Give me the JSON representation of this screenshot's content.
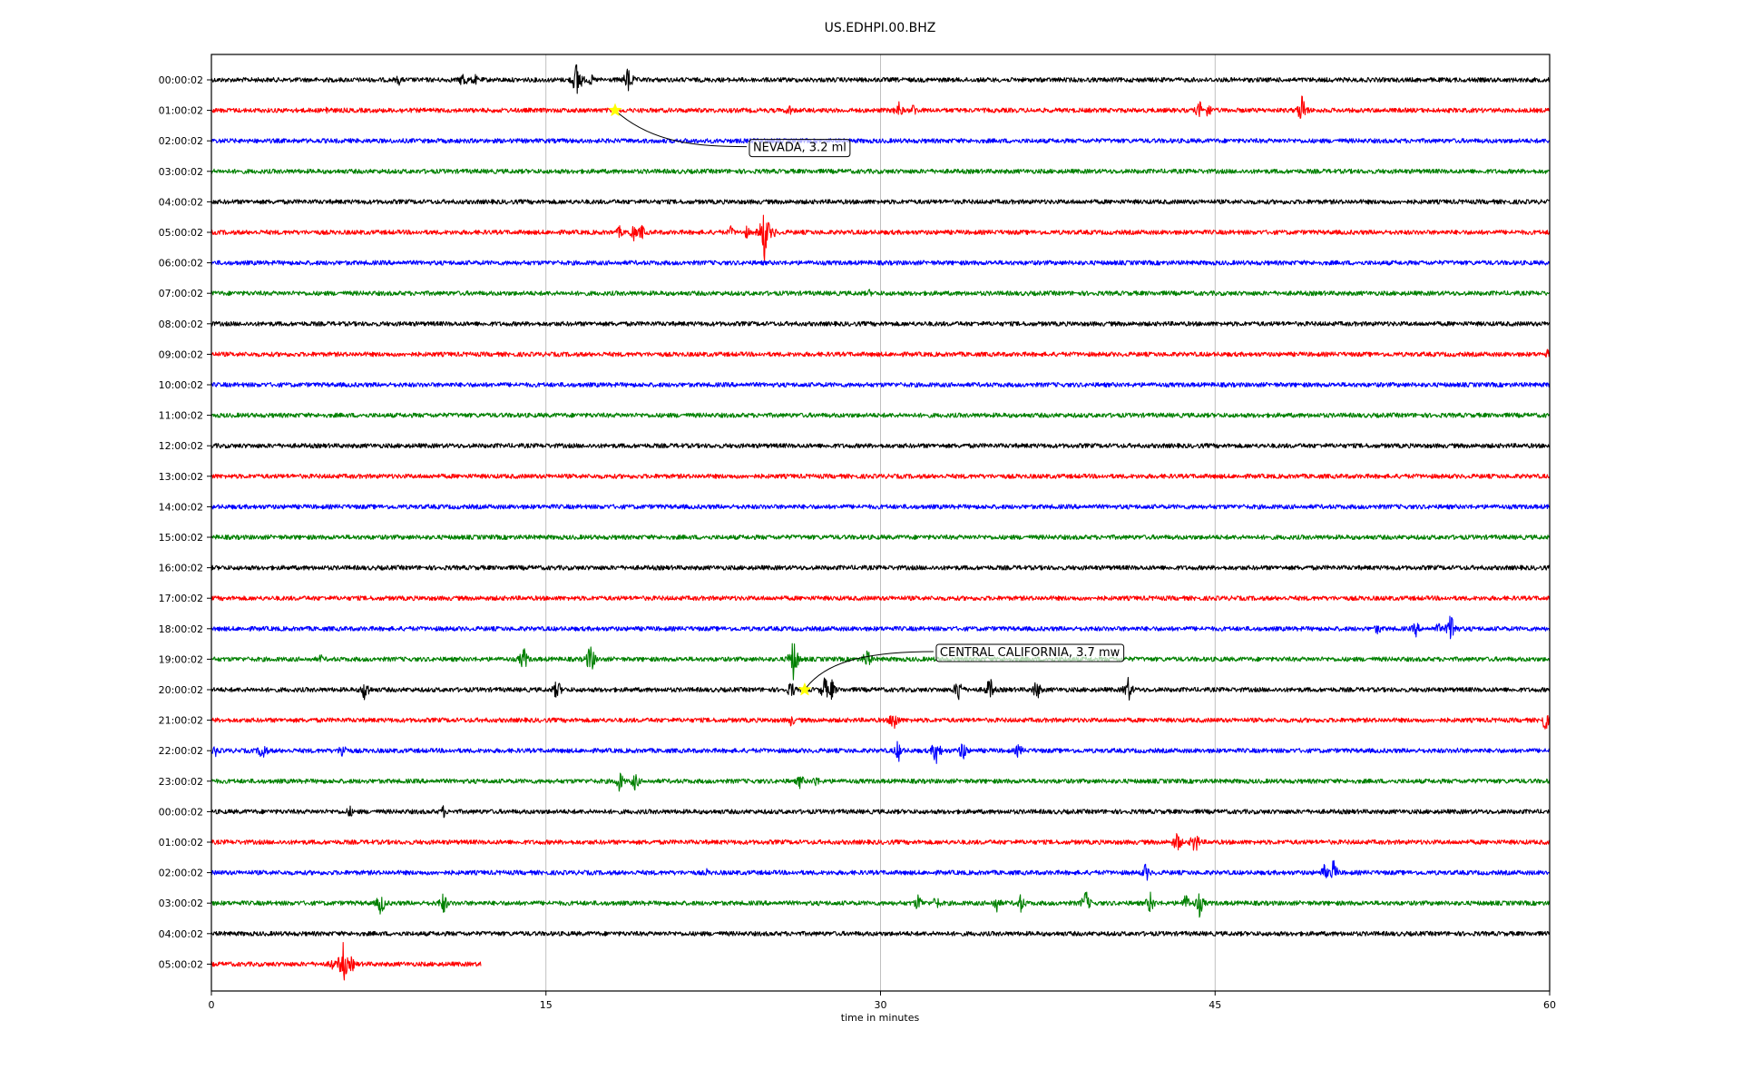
{
  "chart_data": {
    "type": "line",
    "title": "US.EDHPI.00.BHZ",
    "xlabel": "time in minutes",
    "ylabel": "",
    "xlim": [
      0,
      60
    ],
    "x_ticks": [
      0,
      15,
      30,
      45,
      60
    ],
    "x_tick_labels": [
      "0",
      "15",
      "30",
      "45",
      "60"
    ],
    "grid": "vertical-at-ticks",
    "trace_colors": [
      "#000000",
      "#ff0000",
      "#0000ff",
      "#008000"
    ],
    "rows": [
      {
        "label": "00:00:02",
        "noise": 2.5,
        "end_minute": 60,
        "events": [
          {
            "t": 8.4,
            "amp": 7
          },
          {
            "t": 11.3,
            "amp": 12
          },
          {
            "t": 11.8,
            "amp": 8
          },
          {
            "t": 16.4,
            "amp": 26
          },
          {
            "t": 17.0,
            "amp": 8
          },
          {
            "t": 18.7,
            "amp": 18
          }
        ]
      },
      {
        "label": "01:00:02",
        "noise": 2.5,
        "end_minute": 60,
        "events": [
          {
            "t": 5.2,
            "amp": 7
          },
          {
            "t": 8.6,
            "amp": 5
          },
          {
            "t": 25.9,
            "amp": 8
          },
          {
            "t": 30.8,
            "amp": 12
          },
          {
            "t": 31.5,
            "amp": 9
          },
          {
            "t": 44.3,
            "amp": 12
          },
          {
            "t": 44.7,
            "amp": 10
          },
          {
            "t": 48.9,
            "amp": 20
          }
        ]
      },
      {
        "label": "02:00:02",
        "noise": 2.5,
        "end_minute": 60,
        "events": []
      },
      {
        "label": "03:00:02",
        "noise": 2.5,
        "end_minute": 60,
        "events": []
      },
      {
        "label": "04:00:02",
        "noise": 2.5,
        "end_minute": 60,
        "events": []
      },
      {
        "label": "05:00:02",
        "noise": 2.5,
        "end_minute": 60,
        "events": [
          {
            "t": 18.3,
            "amp": 8
          },
          {
            "t": 18.9,
            "amp": 12
          },
          {
            "t": 19.3,
            "amp": 10
          },
          {
            "t": 23.3,
            "amp": 8
          },
          {
            "t": 24.0,
            "amp": 8
          },
          {
            "t": 24.8,
            "amp": 34
          },
          {
            "t": 25.2,
            "amp": 8
          }
        ]
      },
      {
        "label": "06:00:02",
        "noise": 2.5,
        "end_minute": 60,
        "events": []
      },
      {
        "label": "07:00:02",
        "noise": 2.5,
        "end_minute": 60,
        "events": [
          {
            "t": 29.5,
            "amp": 5
          }
        ]
      },
      {
        "label": "08:00:02",
        "noise": 2.5,
        "end_minute": 60,
        "events": []
      },
      {
        "label": "09:00:02",
        "noise": 2.5,
        "end_minute": 60,
        "events": [
          {
            "t": 59.9,
            "amp": 6
          }
        ]
      },
      {
        "label": "10:00:02",
        "noise": 2.5,
        "end_minute": 60,
        "events": []
      },
      {
        "label": "11:00:02",
        "noise": 2.5,
        "end_minute": 60,
        "events": []
      },
      {
        "label": "12:00:02",
        "noise": 2.5,
        "end_minute": 60,
        "events": []
      },
      {
        "label": "13:00:02",
        "noise": 2.5,
        "end_minute": 60,
        "events": []
      },
      {
        "label": "14:00:02",
        "noise": 2.5,
        "end_minute": 60,
        "events": []
      },
      {
        "label": "15:00:02",
        "noise": 2.5,
        "end_minute": 60,
        "events": []
      },
      {
        "label": "16:00:02",
        "noise": 2.5,
        "end_minute": 60,
        "events": []
      },
      {
        "label": "17:00:02",
        "noise": 2.5,
        "end_minute": 60,
        "events": []
      },
      {
        "label": "18:00:02",
        "noise": 2.5,
        "end_minute": 60,
        "events": [
          {
            "t": 52.3,
            "amp": 8
          },
          {
            "t": 54.0,
            "amp": 10
          },
          {
            "t": 55.0,
            "amp": 8
          },
          {
            "t": 55.6,
            "amp": 22
          }
        ]
      },
      {
        "label": "19:00:02",
        "noise": 2.5,
        "end_minute": 60,
        "events": [
          {
            "t": 4.9,
            "amp": 6
          },
          {
            "t": 14.0,
            "amp": 16
          },
          {
            "t": 17.0,
            "amp": 20
          },
          {
            "t": 26.1,
            "amp": 26
          },
          {
            "t": 29.4,
            "amp": 14
          }
        ]
      },
      {
        "label": "20:00:02",
        "noise": 2.5,
        "end_minute": 60,
        "events": [
          {
            "t": 6.9,
            "amp": 16
          },
          {
            "t": 15.5,
            "amp": 14
          },
          {
            "t": 26.0,
            "amp": 12
          },
          {
            "t": 27.5,
            "amp": 16
          },
          {
            "t": 27.8,
            "amp": 14
          },
          {
            "t": 33.5,
            "amp": 16
          },
          {
            "t": 34.9,
            "amp": 16
          },
          {
            "t": 37.0,
            "amp": 14
          },
          {
            "t": 41.1,
            "amp": 16
          }
        ]
      },
      {
        "label": "21:00:02",
        "noise": 2.5,
        "end_minute": 60,
        "events": [
          {
            "t": 26.0,
            "amp": 8
          },
          {
            "t": 30.6,
            "amp": 16
          },
          {
            "t": 59.8,
            "amp": 14
          }
        ]
      },
      {
        "label": "22:00:02",
        "noise": 2.5,
        "end_minute": 60,
        "events": [
          {
            "t": 0.2,
            "amp": 8
          },
          {
            "t": 2.3,
            "amp": 14
          },
          {
            "t": 5.9,
            "amp": 12
          },
          {
            "t": 30.8,
            "amp": 14
          },
          {
            "t": 32.5,
            "amp": 18
          },
          {
            "t": 33.7,
            "amp": 14
          },
          {
            "t": 36.2,
            "amp": 10
          },
          {
            "t": 55.9,
            "amp": 5
          }
        ]
      },
      {
        "label": "23:00:02",
        "noise": 2.5,
        "end_minute": 60,
        "events": [
          {
            "t": 18.3,
            "amp": 14
          },
          {
            "t": 19.0,
            "amp": 12
          },
          {
            "t": 26.4,
            "amp": 10
          },
          {
            "t": 27.1,
            "amp": 8
          }
        ]
      },
      {
        "label": "00:00:02",
        "noise": 2.5,
        "end_minute": 60,
        "events": [
          {
            "t": 6.2,
            "amp": 8
          },
          {
            "t": 10.4,
            "amp": 8
          }
        ]
      },
      {
        "label": "01:00:02",
        "noise": 2.5,
        "end_minute": 60,
        "events": [
          {
            "t": 43.3,
            "amp": 14
          },
          {
            "t": 44.1,
            "amp": 16
          }
        ]
      },
      {
        "label": "02:00:02",
        "noise": 2.5,
        "end_minute": 60,
        "events": [
          {
            "t": 22.2,
            "amp": 5
          },
          {
            "t": 41.9,
            "amp": 12
          },
          {
            "t": 49.9,
            "amp": 10
          },
          {
            "t": 50.3,
            "amp": 16
          }
        ]
      },
      {
        "label": "03:00:02",
        "noise": 2.5,
        "end_minute": 60,
        "events": [
          {
            "t": 7.6,
            "amp": 16
          },
          {
            "t": 10.4,
            "amp": 14
          },
          {
            "t": 31.7,
            "amp": 12
          },
          {
            "t": 32.5,
            "amp": 10
          },
          {
            "t": 35.2,
            "amp": 12
          },
          {
            "t": 36.3,
            "amp": 12
          },
          {
            "t": 39.2,
            "amp": 16
          },
          {
            "t": 42.1,
            "amp": 14
          },
          {
            "t": 43.7,
            "amp": 12
          },
          {
            "t": 44.3,
            "amp": 16
          }
        ]
      },
      {
        "label": "04:00:02",
        "noise": 2.5,
        "end_minute": 60,
        "events": []
      },
      {
        "label": "05:00:02",
        "noise": 2.5,
        "end_minute": 12.1,
        "events": [
          {
            "t": 5.4,
            "amp": 8
          },
          {
            "t": 5.9,
            "amp": 26
          },
          {
            "t": 6.3,
            "amp": 10
          }
        ]
      }
    ],
    "annotations": [
      {
        "text": "NEVADA, 3.2 ml",
        "row": 1,
        "t": 18.1,
        "marker": "star",
        "marker_color": "#ffff00"
      },
      {
        "text": "CENTRAL CALIFORNIA, 3.7 mw",
        "row": 20,
        "t": 26.6,
        "marker": "star",
        "marker_color": "#ffff00"
      }
    ]
  }
}
